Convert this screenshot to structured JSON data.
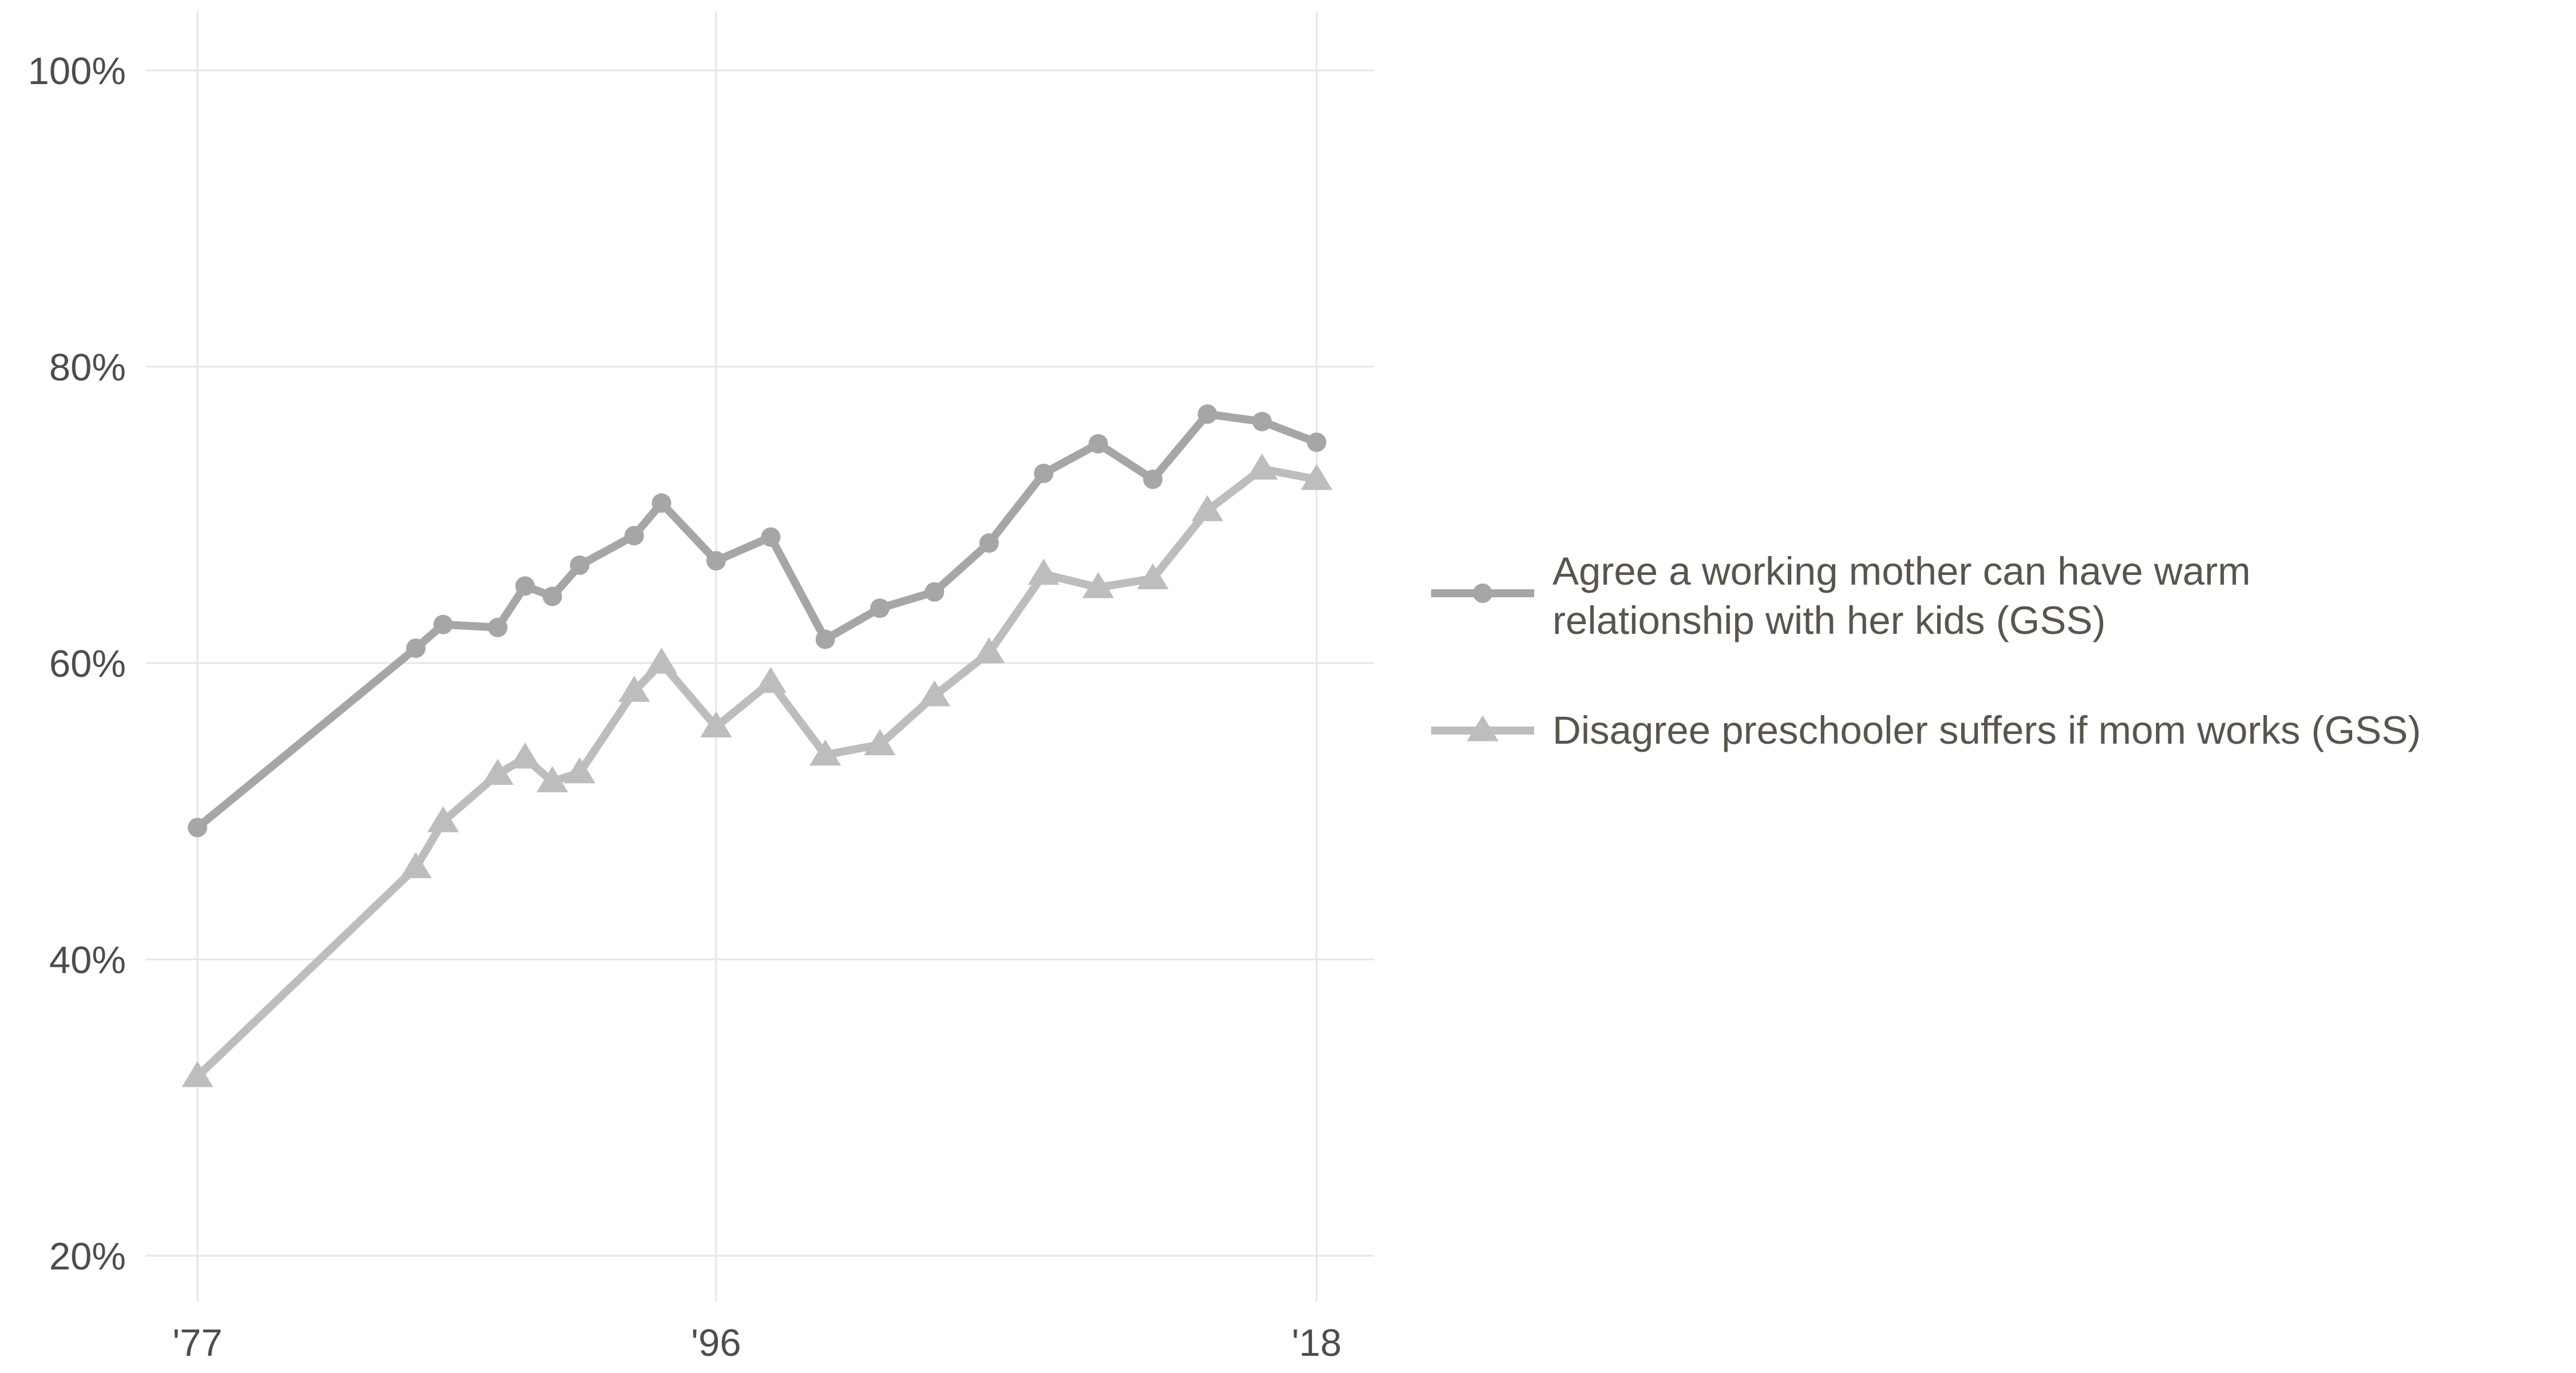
{
  "chart_data": {
    "type": "line",
    "title": "",
    "xlabel": "",
    "ylabel": "",
    "xlim": [
      1976.5,
      1978.0
    ],
    "x_ticks": [
      {
        "value": 1977,
        "label": "'77"
      },
      {
        "value": 1996,
        "label": "'96"
      },
      {
        "value": 2018,
        "label": "'18"
      }
    ],
    "ylim": [
      17,
      102
    ],
    "y_ticks": [
      {
        "value": 20,
        "label": "20%"
      },
      {
        "value": 40,
        "label": "40%"
      },
      {
        "value": 60,
        "label": "60%"
      },
      {
        "value": 80,
        "label": "80%"
      },
      {
        "value": 100,
        "label": "100%"
      }
    ],
    "grid": true,
    "legend_position": "right",
    "series": [
      {
        "name_lines": [
          "Agree a working mother can have warm",
          "relationship with her kids (GSS)"
        ],
        "marker": "circle",
        "color": "#a6a6a6",
        "points": [
          [
            1977,
            48.9
          ],
          [
            1985,
            61.0
          ],
          [
            1986,
            62.6
          ],
          [
            1988,
            62.4
          ],
          [
            1989,
            65.2
          ],
          [
            1990,
            64.5
          ],
          [
            1991,
            66.6
          ],
          [
            1993,
            68.6
          ],
          [
            1994,
            70.8
          ],
          [
            1996,
            66.9
          ],
          [
            1998,
            68.5
          ],
          [
            2000,
            61.6
          ],
          [
            2002,
            63.7
          ],
          [
            2004,
            64.8
          ],
          [
            2006,
            68.1
          ],
          [
            2008,
            72.8
          ],
          [
            2010,
            74.8
          ],
          [
            2012,
            72.4
          ],
          [
            2014,
            76.8
          ],
          [
            2016,
            76.3
          ],
          [
            2018,
            74.9
          ]
        ]
      },
      {
        "name_lines": [
          "Disagree preschooler suffers if mom works (GSS)"
        ],
        "marker": "triangle",
        "color": "#bdbdbd",
        "points": [
          [
            1977,
            32.1
          ],
          [
            1985,
            46.2
          ],
          [
            1986,
            49.3
          ],
          [
            1988,
            52.5
          ],
          [
            1989,
            53.6
          ],
          [
            1990,
            52.0
          ],
          [
            1991,
            52.6
          ],
          [
            1993,
            58.1
          ],
          [
            1994,
            60.0
          ],
          [
            1996,
            55.7
          ],
          [
            1998,
            58.7
          ],
          [
            2000,
            53.8
          ],
          [
            2002,
            54.5
          ],
          [
            2004,
            57.8
          ],
          [
            2006,
            60.7
          ],
          [
            2008,
            66.0
          ],
          [
            2010,
            65.1
          ],
          [
            2012,
            65.7
          ],
          [
            2014,
            70.3
          ],
          [
            2016,
            73.1
          ],
          [
            2018,
            72.4
          ]
        ]
      }
    ]
  }
}
